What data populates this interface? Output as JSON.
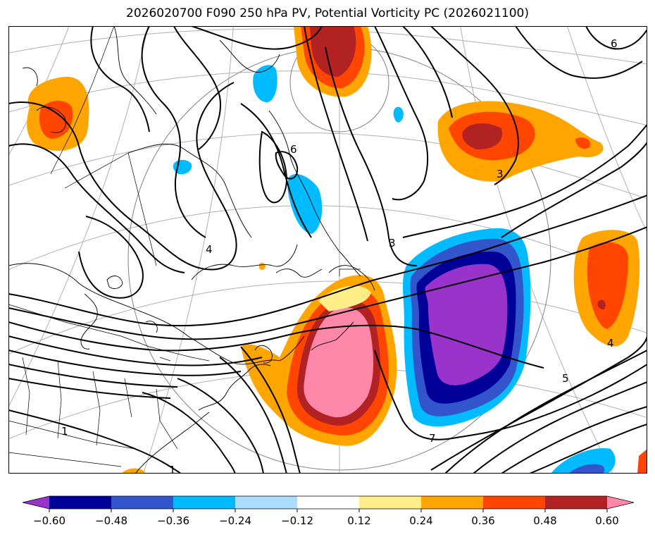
{
  "title": "2026020700 F090 250 hPa PV, Potential Vorticity PC (2026021100)",
  "map": {
    "contour_labels": [
      {
        "text": "6",
        "value": 6
      },
      {
        "text": "6",
        "value": 6
      },
      {
        "text": "3",
        "value": 3
      },
      {
        "text": "3",
        "value": 3
      },
      {
        "text": "4",
        "value": 4
      },
      {
        "text": "4",
        "value": 4
      },
      {
        "text": "5",
        "value": 5
      },
      {
        "text": "7",
        "value": 7
      },
      {
        "text": "1",
        "value": 1
      },
      {
        "text": "1",
        "value": 1
      }
    ],
    "colors": {
      "m060": "#9933cc",
      "m048": "#000099",
      "m036": "#3355cc",
      "m024": "#00bbff",
      "m012": "#aaddff",
      "zero": "#ffffff",
      "p012": "#ffee88",
      "p024": "#ffa500",
      "p036": "#ff4500",
      "p048": "#b22222",
      "p060": "#ff88aa"
    }
  },
  "colorbar": {
    "bins": [
      {
        "color": "#9933cc",
        "range": "< -0.60"
      },
      {
        "color": "#000099",
        "range": "-0.60 to -0.48"
      },
      {
        "color": "#3355cc",
        "range": "-0.48 to -0.36"
      },
      {
        "color": "#00bbff",
        "range": "-0.36 to -0.24"
      },
      {
        "color": "#aaddff",
        "range": "-0.24 to -0.12"
      },
      {
        "color": "#ffffff",
        "range": "-0.12 to 0.12"
      },
      {
        "color": "#ffee88",
        "range": "0.12 to 0.24"
      },
      {
        "color": "#ffa500",
        "range": "0.24 to 0.36"
      },
      {
        "color": "#ff4500",
        "range": "0.36 to 0.48"
      },
      {
        "color": "#b22222",
        "range": "0.48 to 0.60"
      },
      {
        "color": "#ff88aa",
        "range": "> 0.60"
      }
    ],
    "ticks": [
      "−0.60",
      "−0.48",
      "−0.36",
      "−0.24",
      "−0.12",
      "0.12",
      "0.24",
      "0.36",
      "0.48",
      "0.60"
    ]
  }
}
